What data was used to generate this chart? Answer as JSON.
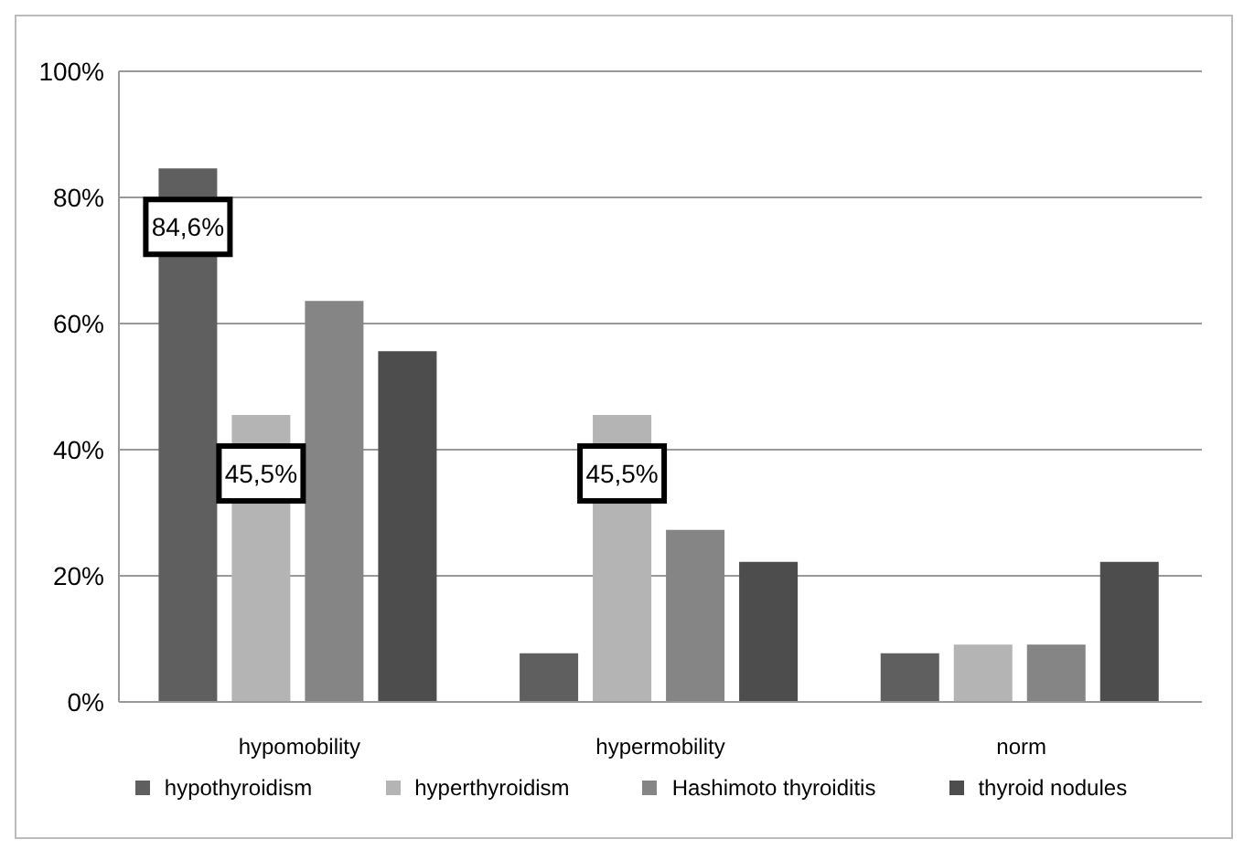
{
  "chart_data": {
    "type": "bar",
    "categories": [
      "hypomobility",
      "hypermobility",
      "norm"
    ],
    "series": [
      {
        "name": "hypothyroidism",
        "color": "#5f5f5f",
        "values": [
          84.6,
          7.7,
          7.7
        ],
        "value_labels": [
          "84,6%",
          null,
          null
        ]
      },
      {
        "name": "hyperthyroidism",
        "color": "#b4b4b4",
        "values": [
          45.5,
          45.5,
          9.1
        ],
        "value_labels": [
          "45,5%",
          "45,5%",
          null
        ]
      },
      {
        "name": "Hashimoto thyroiditis",
        "color": "#858585",
        "values": [
          63.6,
          27.3,
          9.1
        ]
      },
      {
        "name": "thyroid nodules",
        "color": "#4d4d4d",
        "values": [
          55.6,
          22.2,
          22.2
        ]
      }
    ],
    "ylim": [
      0,
      100
    ],
    "yticks": [
      {
        "value": 0,
        "label": "0%"
      },
      {
        "value": 20,
        "label": "20%"
      },
      {
        "value": 40,
        "label": "40%"
      },
      {
        "value": 60,
        "label": "60%"
      },
      {
        "value": 80,
        "label": "80%"
      },
      {
        "value": 100,
        "label": "100%"
      }
    ],
    "grid": "y",
    "legend": "bottom"
  }
}
